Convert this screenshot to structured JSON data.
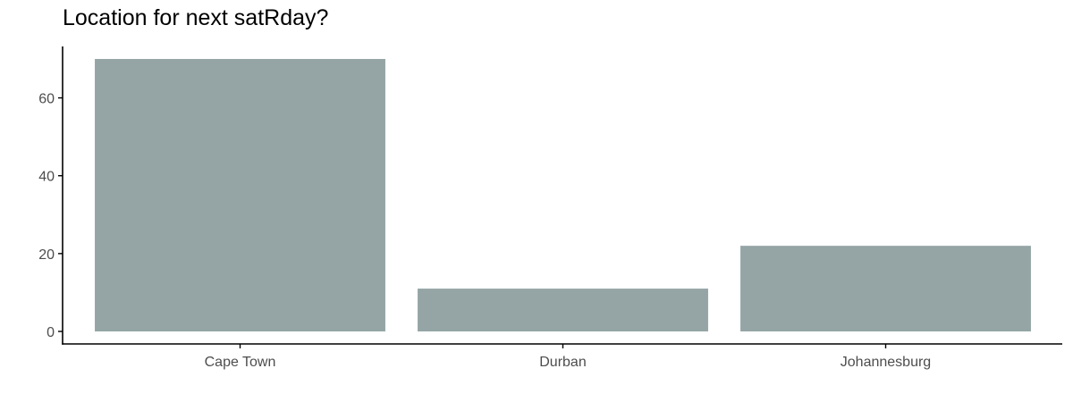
{
  "chart_data": {
    "type": "bar",
    "title": "Location for next satRday?",
    "xlabel": "",
    "ylabel": "",
    "categories": [
      "Cape Town",
      "Durban",
      "Johannesburg"
    ],
    "values": [
      70,
      11,
      22
    ],
    "ylim": [
      0,
      70
    ],
    "yticks": [
      0,
      20,
      40,
      60
    ],
    "grid": false,
    "legend": "none",
    "bar_color": "#95a5a6"
  }
}
